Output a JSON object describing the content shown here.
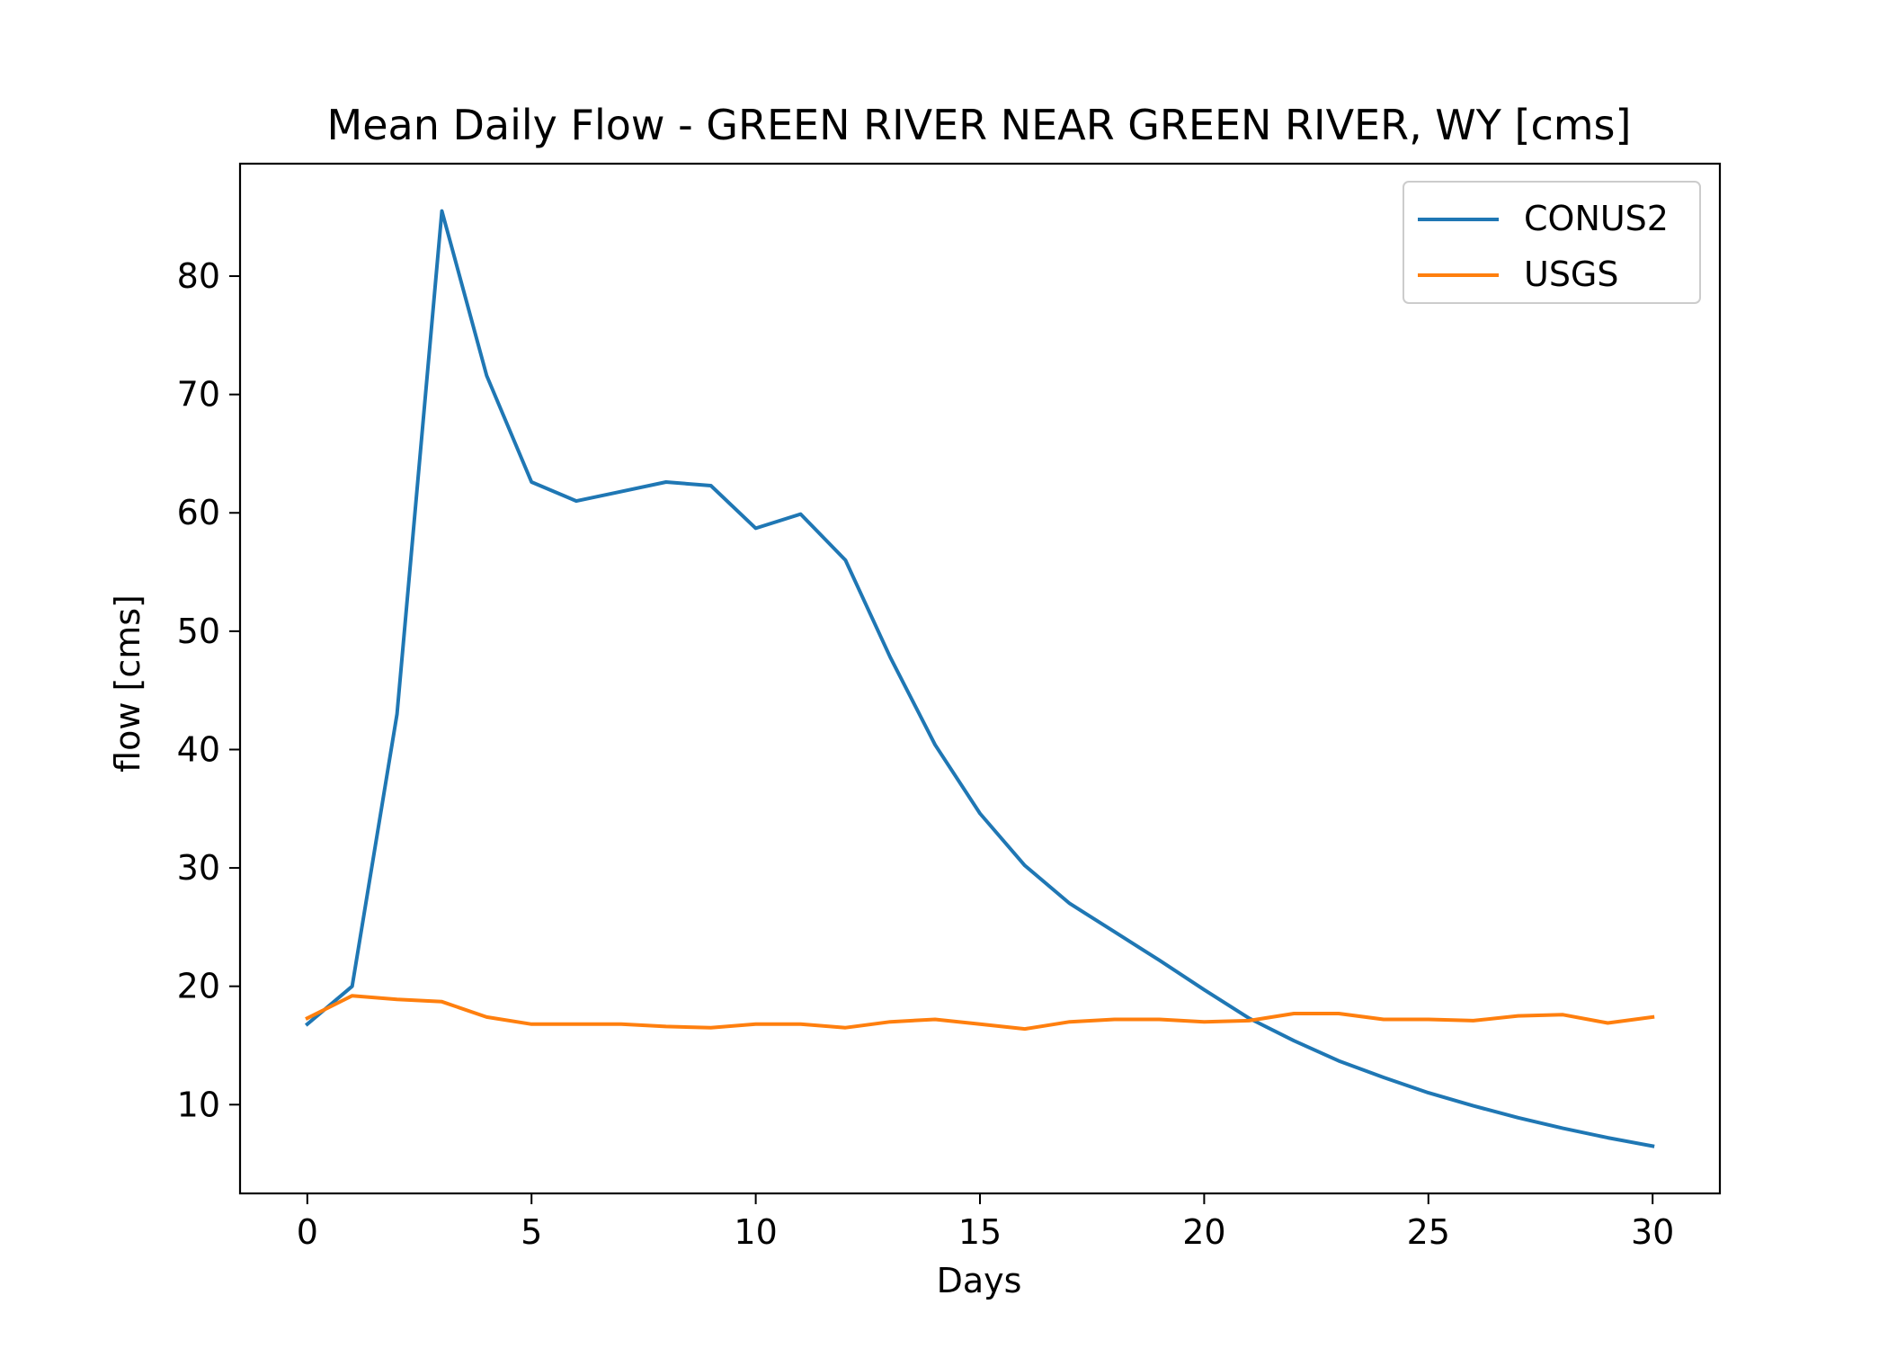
{
  "chart_data": {
    "type": "line",
    "title": "Mean Daily Flow - GREEN RIVER NEAR GREEN RIVER, WY [cms]",
    "xlabel": "Days",
    "ylabel": "flow [cms]",
    "xlim": [
      -1.5,
      31.5
    ],
    "ylim": [
      2.5,
      89.5
    ],
    "xticks": [
      0,
      5,
      10,
      15,
      20,
      25,
      30
    ],
    "yticks": [
      10,
      20,
      30,
      40,
      50,
      60,
      70,
      80
    ],
    "grid": false,
    "legend_position": "top-right",
    "x": [
      0,
      1,
      2,
      3,
      4,
      5,
      6,
      7,
      8,
      9,
      10,
      11,
      12,
      13,
      14,
      15,
      16,
      17,
      18,
      19,
      20,
      21,
      22,
      23,
      24,
      25,
      26,
      27,
      28,
      29,
      30
    ],
    "series": [
      {
        "name": "CONUS2",
        "color": "#1f77b4",
        "values": [
          16.8,
          20.0,
          43.0,
          85.5,
          71.6,
          62.6,
          61.0,
          61.8,
          62.6,
          62.3,
          58.7,
          59.9,
          56.0,
          47.8,
          40.4,
          34.6,
          30.2,
          27.0,
          24.6,
          22.2,
          19.7,
          17.3,
          15.4,
          13.7,
          12.3,
          11.0,
          9.9,
          8.9,
          8.0,
          7.2,
          6.5
        ]
      },
      {
        "name": "USGS",
        "color": "#ff7f0e",
        "values": [
          17.3,
          19.2,
          18.9,
          18.7,
          17.4,
          16.8,
          16.8,
          16.8,
          16.6,
          16.5,
          16.8,
          16.8,
          16.5,
          17.0,
          17.2,
          16.8,
          16.4,
          17.0,
          17.2,
          17.2,
          17.0,
          17.1,
          17.7,
          17.7,
          17.2,
          17.2,
          17.1,
          17.5,
          17.6,
          16.9,
          17.4
        ]
      }
    ]
  }
}
